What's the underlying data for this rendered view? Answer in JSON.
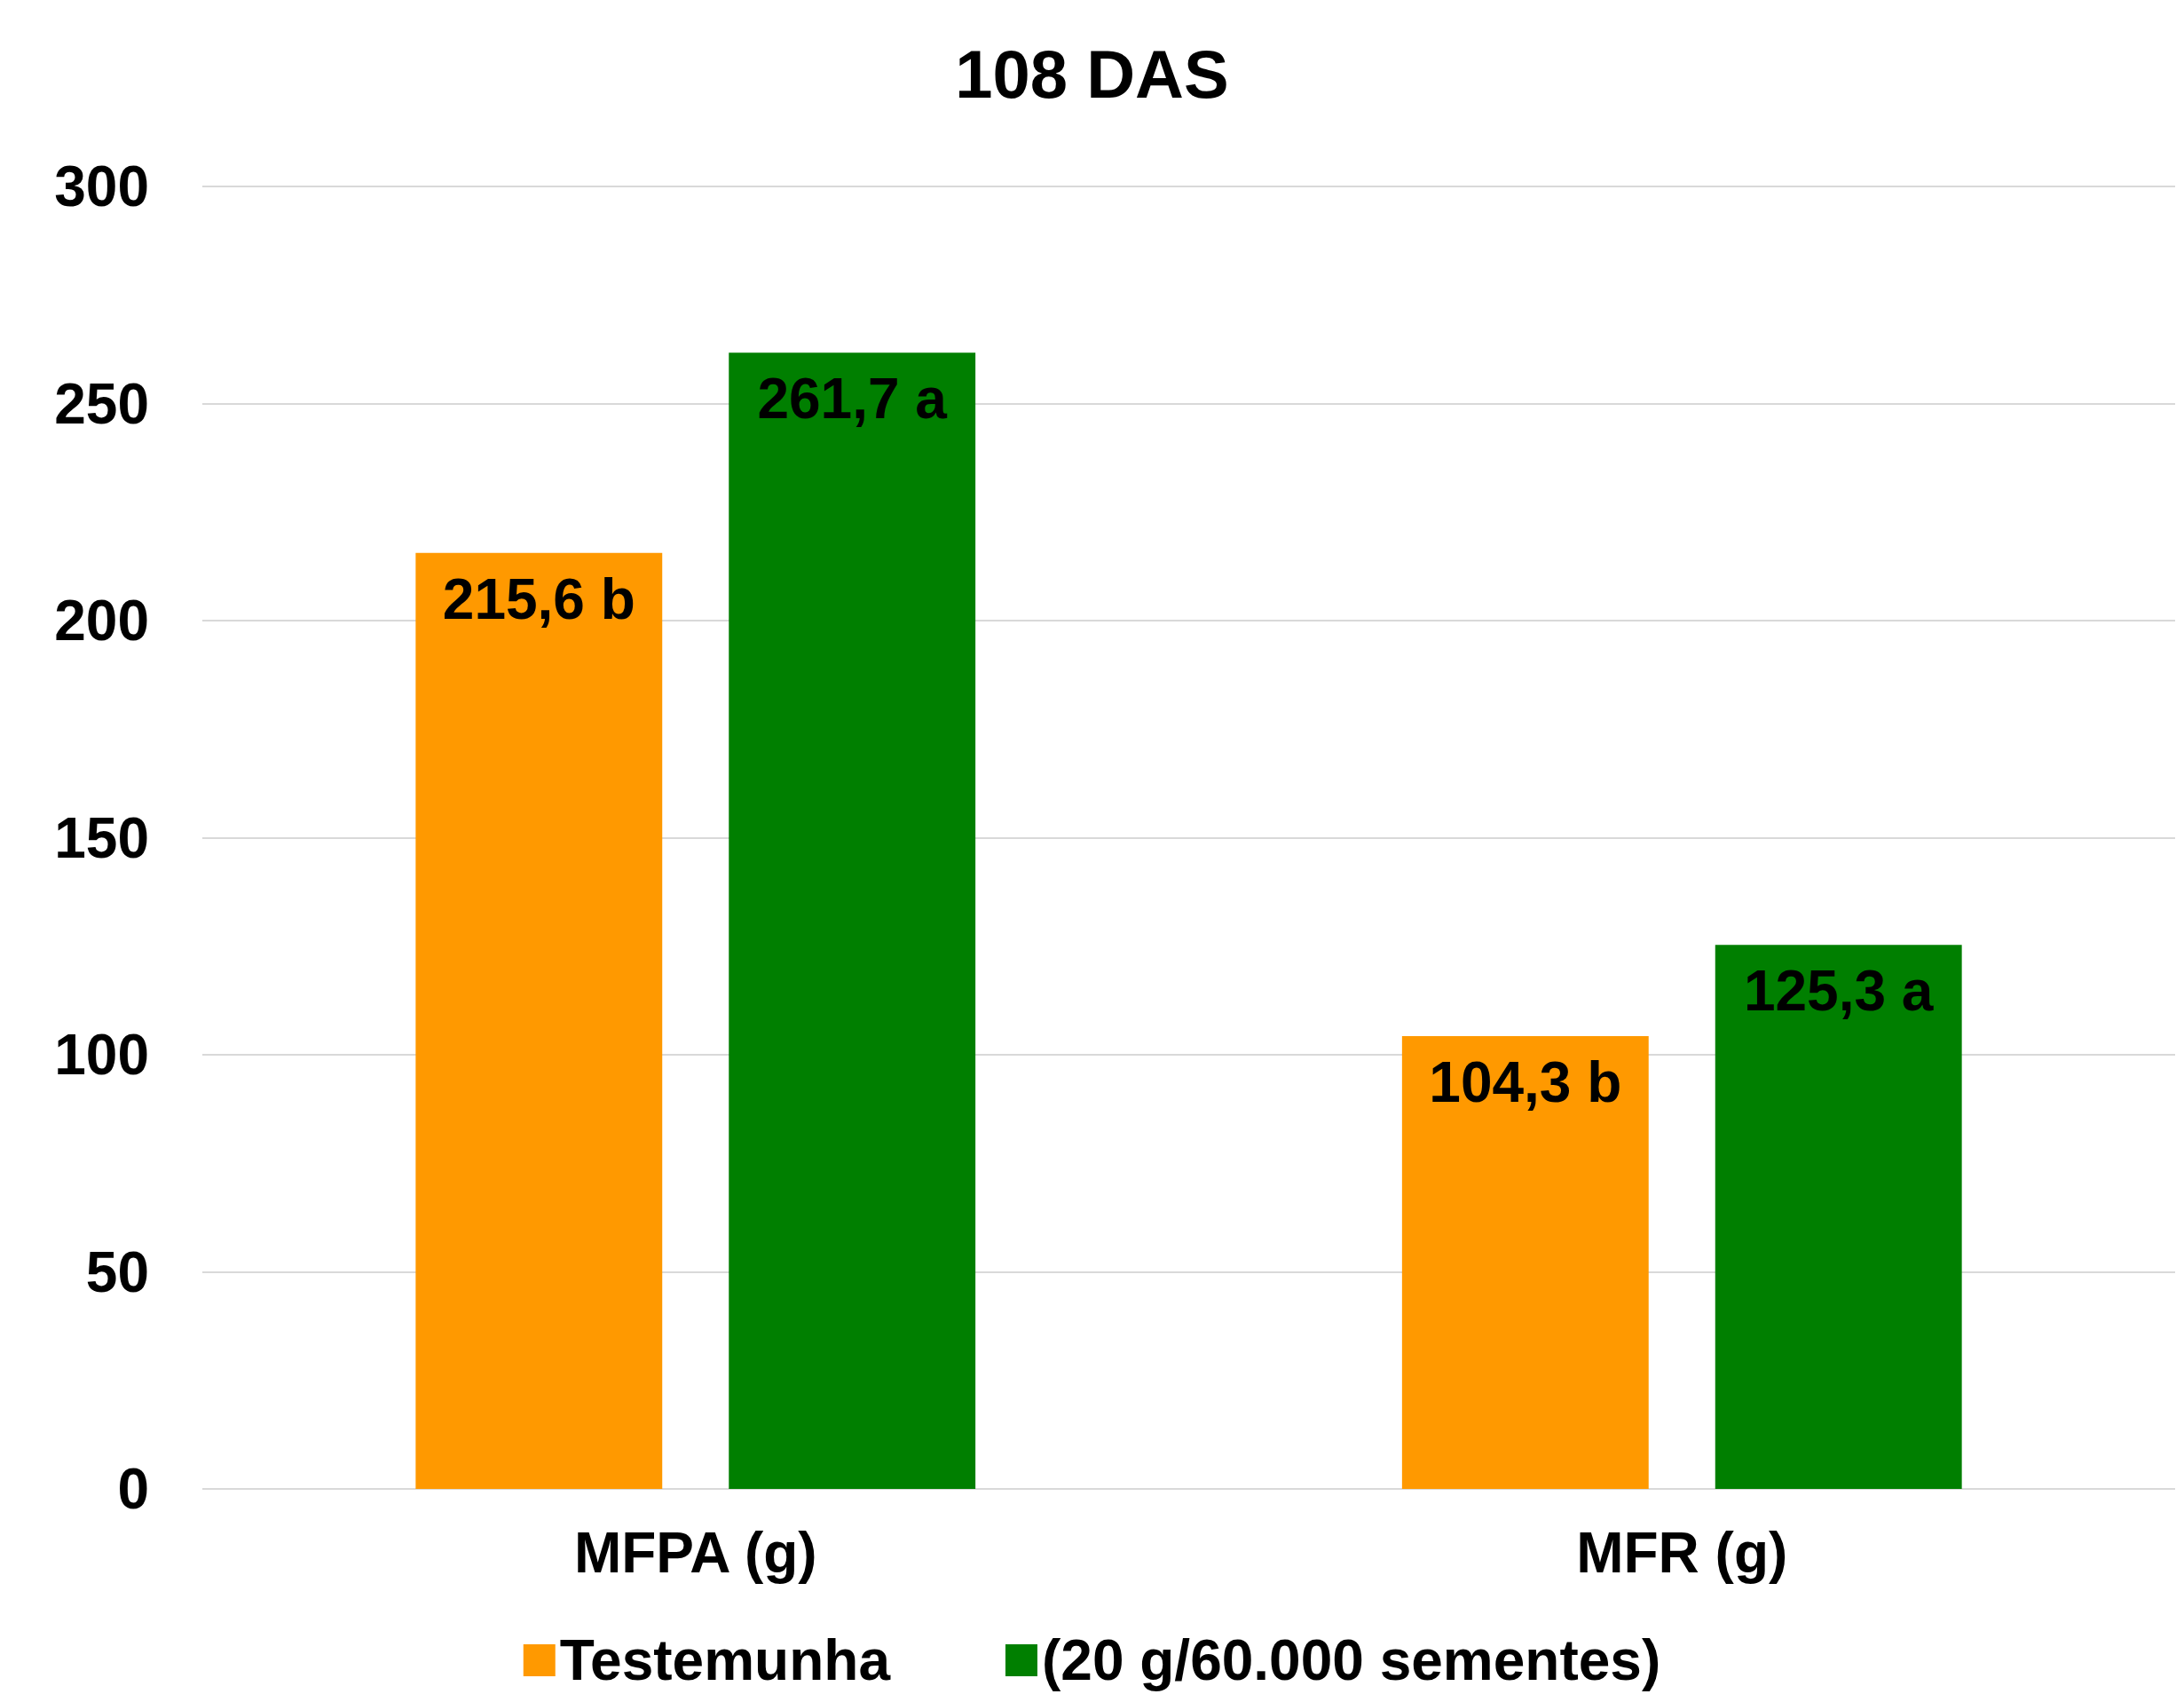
{
  "chart_data": {
    "type": "bar",
    "title": "108 DAS",
    "categories": [
      "MFPA (g)",
      "MFR (g)"
    ],
    "series": [
      {
        "name": "Testemunha",
        "color": "#ff9900",
        "values": [
          215.6,
          104.3
        ],
        "value_labels": [
          "215,6 b",
          "104,3 b"
        ]
      },
      {
        "name": "(20 g/60.000 sementes)",
        "color": "#007f00",
        "values": [
          261.7,
          125.3
        ],
        "value_labels": [
          "261,7 a",
          "125,3 a"
        ]
      }
    ],
    "ylim": [
      0,
      300
    ],
    "yticks": [
      0,
      50,
      100,
      150,
      200,
      250,
      300
    ],
    "grid": "y",
    "legend": "bottom"
  }
}
